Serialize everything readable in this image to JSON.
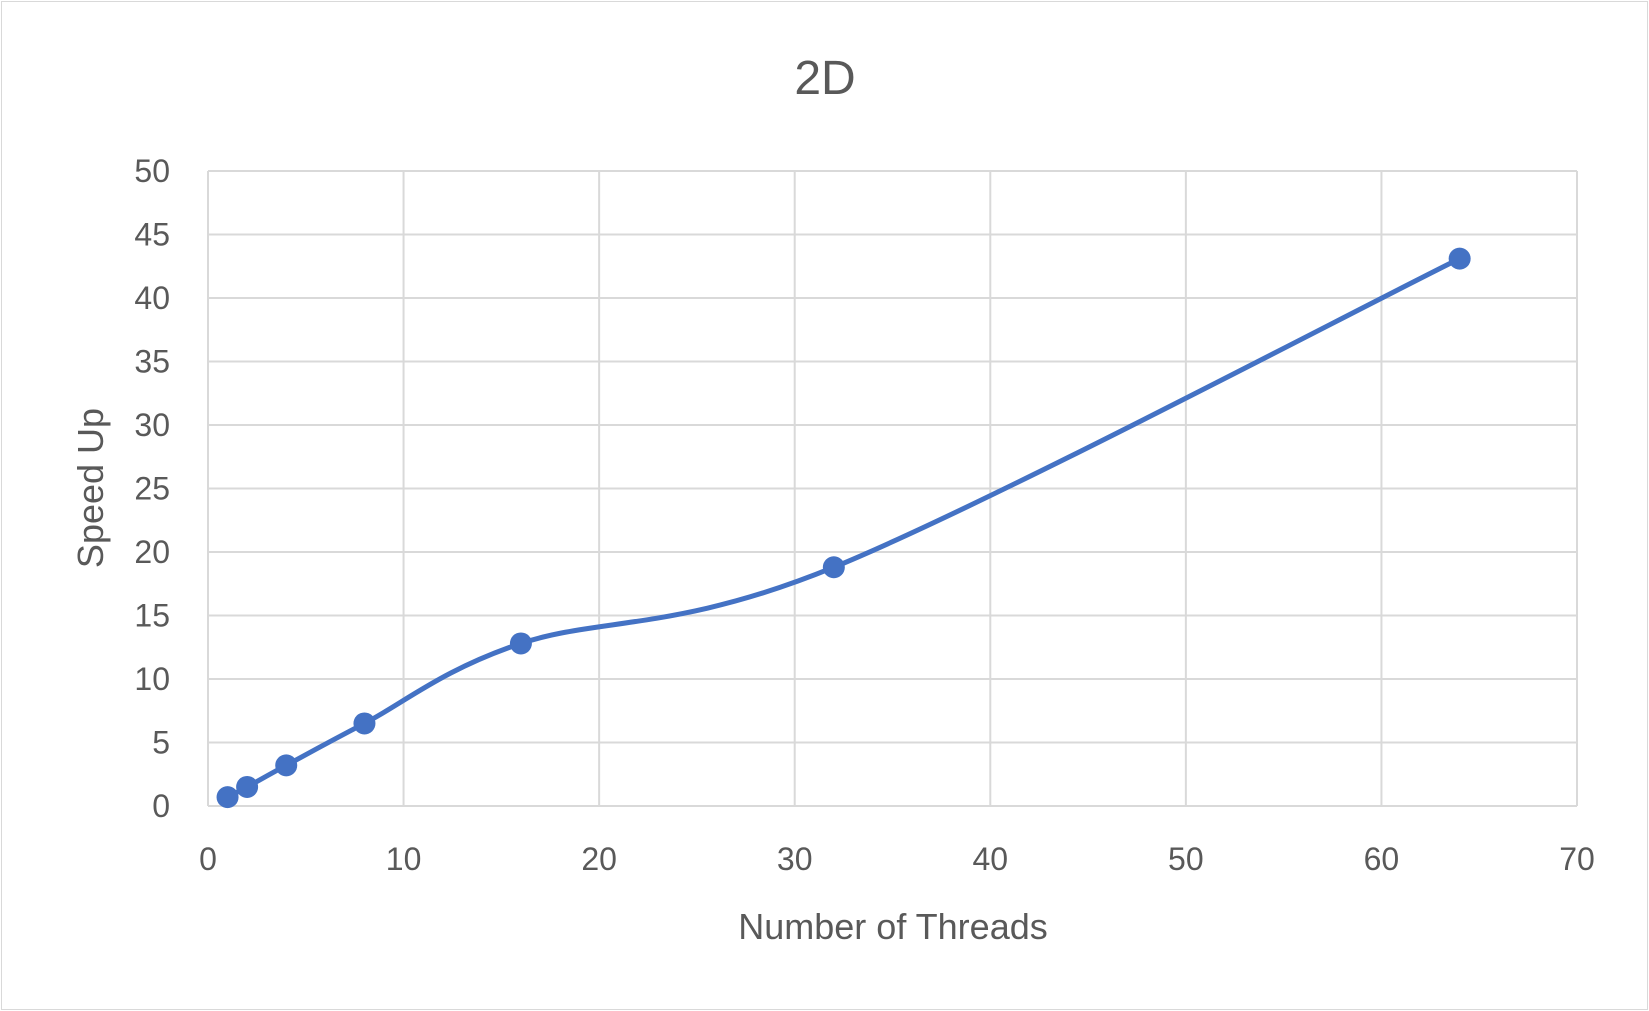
{
  "chart_data": {
    "type": "scatter",
    "title": "2D",
    "xlabel": "Number of Threads",
    "ylabel": "Speed Up",
    "xlim": [
      0,
      70
    ],
    "ylim": [
      0,
      50
    ],
    "x_ticks": [
      0,
      10,
      20,
      30,
      40,
      50,
      60,
      70
    ],
    "y_ticks": [
      0,
      5,
      10,
      15,
      20,
      25,
      30,
      35,
      40,
      45,
      50
    ],
    "grid": true,
    "smooth_line": true,
    "markers": true,
    "legend": "none",
    "series": [
      {
        "color": "#4472C4",
        "x": [
          1,
          2,
          4,
          8,
          16,
          32,
          64
        ],
        "y": [
          0.7,
          1.5,
          3.2,
          6.5,
          12.8,
          18.8,
          43.1
        ]
      }
    ]
  }
}
